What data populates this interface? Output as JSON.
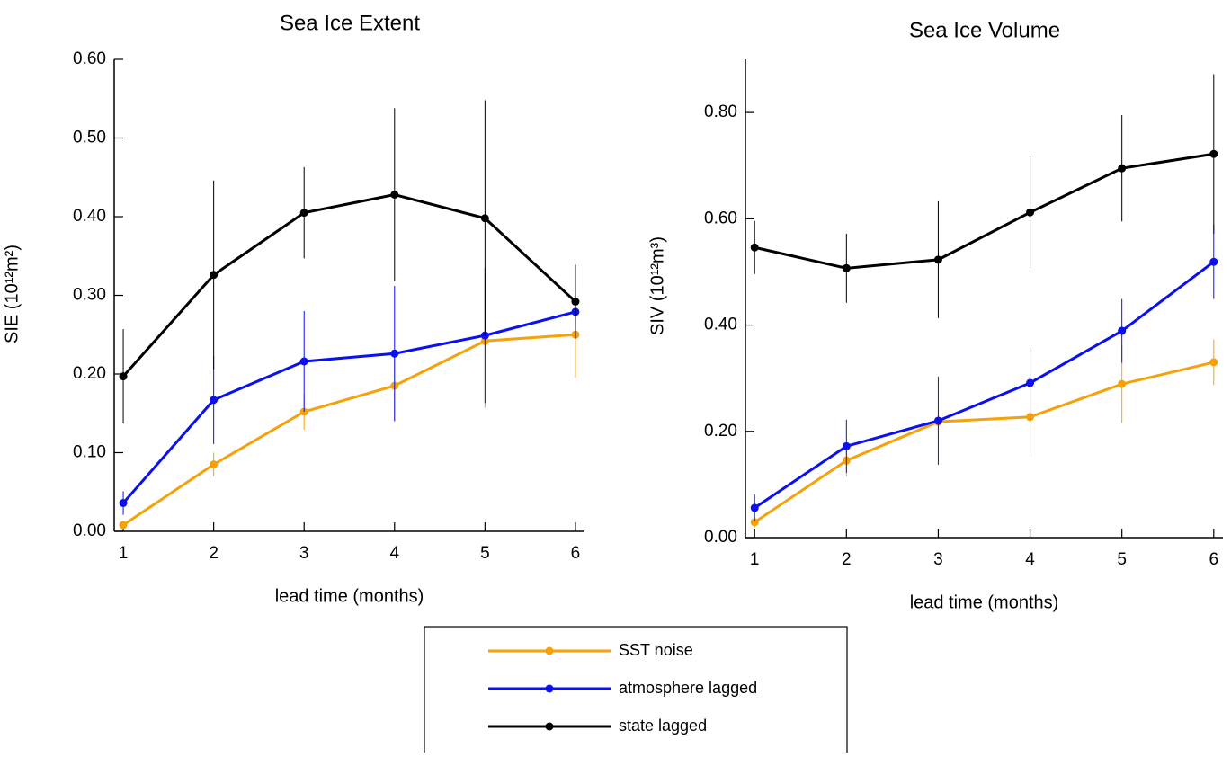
{
  "chart_data": [
    {
      "type": "line",
      "title": "Sea Ice Extent",
      "xlabel": "lead time (months)",
      "ylabel": "SIE (10¹²m²)",
      "x": [
        1,
        2,
        3,
        4,
        5,
        6
      ],
      "xlim": [
        0.9,
        6.1
      ],
      "xticks": [
        1,
        2,
        3,
        4,
        5,
        6
      ],
      "ylim": [
        0,
        0.6
      ],
      "yticks": [
        {
          "value": 0,
          "label": "0.00"
        },
        {
          "value": 0.1,
          "label": "0.10"
        },
        {
          "value": 0.2,
          "label": "0.20"
        },
        {
          "value": 0.3,
          "label": "0.30"
        },
        {
          "value": 0.4,
          "label": "0.40"
        },
        {
          "value": 0.5,
          "label": "0.50"
        },
        {
          "value": 0.6,
          "label": "0.60"
        }
      ],
      "series": [
        {
          "name": "SST noise",
          "color": "#f5a20a",
          "values": [
            0.008,
            0.085,
            0.152,
            0.185,
            0.242,
            0.25
          ],
          "errors": [
            0.005,
            0.015,
            0.023,
            0.045,
            0.085,
            0.055
          ]
        },
        {
          "name": "atmosphere lagged",
          "color": "#0a10f0",
          "values": [
            0.036,
            0.167,
            0.216,
            0.226,
            0.249,
            0.279
          ],
          "errors": [
            0.015,
            0.056,
            0.064,
            0.086,
            0.086,
            0.018
          ]
        },
        {
          "name": "state lagged",
          "color": "#000000",
          "values": [
            0.197,
            0.326,
            0.405,
            0.428,
            0.398,
            0.292
          ],
          "errors": [
            0.06,
            0.12,
            0.058,
            0.11,
            0.15,
            0.047
          ]
        }
      ]
    },
    {
      "type": "line",
      "title": "Sea Ice Volume",
      "xlabel": "lead time (months)",
      "ylabel": "SIV (10¹²m³)",
      "x": [
        1,
        2,
        3,
        4,
        5,
        6
      ],
      "xlim": [
        0.9,
        6.1
      ],
      "xticks": [
        1,
        2,
        3,
        4,
        5,
        6
      ],
      "ylim": [
        0,
        0.9
      ],
      "yticks": [
        {
          "value": 0,
          "label": "0.00"
        },
        {
          "value": 0.2,
          "label": "0.20"
        },
        {
          "value": 0.4,
          "label": "0.40"
        },
        {
          "value": 0.6,
          "label": "0.60"
        },
        {
          "value": 0.8,
          "label": "0.80"
        }
      ],
      "series": [
        {
          "color": "#f5a20a",
          "values": [
            0.029,
            0.145,
            0.218,
            0.227,
            0.289,
            0.33
          ],
          "errors": [
            0.01,
            0.03,
            0.02,
            0.075,
            0.073,
            0.043
          ]
        },
        {
          "color": "#0a10f0",
          "values": [
            0.056,
            0.172,
            0.22,
            0.291,
            0.389,
            0.519
          ],
          "errors": [
            0.025,
            0.05,
            0.083,
            0.068,
            0.06,
            0.07
          ]
        },
        {
          "color": "#000000",
          "values": [
            0.546,
            0.507,
            0.523,
            0.612,
            0.695,
            0.722
          ],
          "errors": [
            0.05,
            0.065,
            0.11,
            0.105,
            0.1,
            0.15
          ]
        }
      ]
    }
  ]
}
